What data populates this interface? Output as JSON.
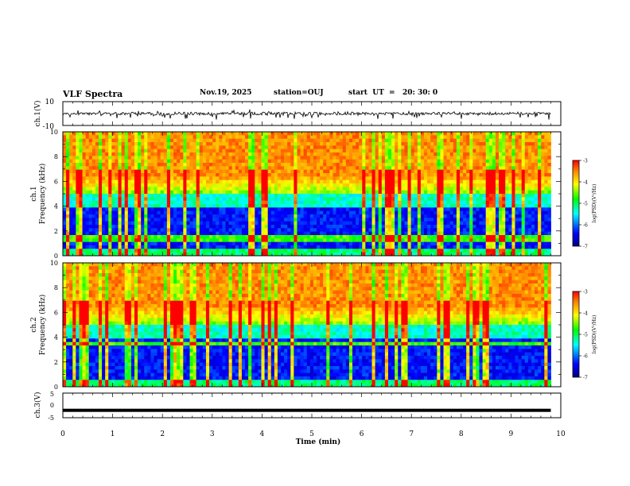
{
  "header": {
    "title": "VLF Spectra",
    "date": "Nov.19, 2025",
    "station": "station=OUJ",
    "start": "start  UT  =   20: 30: 0"
  },
  "chart_data": [
    {
      "type": "line",
      "name": "ch1-waveform",
      "ylabel": "ch.1(V)",
      "ylim": [
        -10,
        10
      ],
      "y_tick_labels": [
        "10",
        "-10"
      ],
      "xlim": [
        0,
        10
      ],
      "trace_end_min": 9.8,
      "baseline_v": 0,
      "amplitude_v": 3
    },
    {
      "type": "heatmap",
      "name": "ch1-spectrogram",
      "ylabel_channel": "ch.1",
      "ylabel": "Frequency  (kHz)",
      "ylim": [
        0,
        10
      ],
      "y_ticks": [
        0,
        2,
        4,
        6,
        8,
        10
      ],
      "xlim": [
        0,
        10
      ],
      "data_end_min": 9.8,
      "colorbar": {
        "label": "log(PSD)(V²/Hz)",
        "range": [
          -7,
          -3
        ],
        "tick_labels": [
          "-3",
          "-4",
          "-5",
          "-6",
          "-7"
        ]
      }
    },
    {
      "type": "heatmap",
      "name": "ch2-spectrogram",
      "ylabel_channel": "ch.2",
      "ylabel": "Frequency  (kHz)",
      "ylim": [
        0,
        10
      ],
      "y_ticks": [
        0,
        2,
        4,
        6,
        8,
        10
      ],
      "xlim": [
        0,
        10
      ],
      "data_end_min": 9.8,
      "colorbar": {
        "label": "log(PSD)(V²/Hz)",
        "range": [
          -7,
          -3
        ],
        "tick_labels": [
          "-3",
          "-4",
          "-5",
          "-6",
          "-7"
        ]
      }
    },
    {
      "type": "line",
      "name": "ch3-level",
      "ylabel": "ch.3(V)",
      "ylim": [
        -5,
        5
      ],
      "y_tick_labels": [
        "5",
        "0",
        "-5"
      ],
      "xlim": [
        0,
        10
      ],
      "trace_end_min": 9.8,
      "level_v": -2
    }
  ],
  "x_axis": {
    "label": "Time  (min)",
    "tick_labels": [
      "0",
      "1",
      "2",
      "3",
      "4",
      "5",
      "6",
      "7",
      "8",
      "9",
      "10"
    ]
  },
  "colors": {
    "axis": "#000000",
    "trace": "#000000",
    "colormap": [
      "#000080",
      "#0000ff",
      "#00ffff",
      "#00ff00",
      "#ffff00",
      "#ff0000"
    ]
  }
}
